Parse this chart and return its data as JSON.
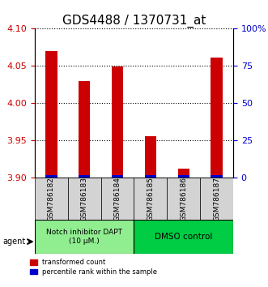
{
  "title": "GDS4488 / 1370731_at",
  "categories": [
    "GSM786182",
    "GSM786183",
    "GSM786184",
    "GSM786185",
    "GSM786186",
    "GSM786187"
  ],
  "red_values": [
    4.07,
    4.03,
    4.049,
    3.956,
    3.913,
    4.061
  ],
  "blue_percentiles": [
    2.0,
    2.0,
    2.0,
    2.0,
    2.0,
    2.0
  ],
  "ylim_left": [
    3.9,
    4.1
  ],
  "ylim_right": [
    0,
    100
  ],
  "yticks_left": [
    3.9,
    3.95,
    4.0,
    4.05,
    4.1
  ],
  "yticks_right": [
    0,
    25,
    50,
    75,
    100
  ],
  "ytick_labels_right": [
    "0",
    "25",
    "50",
    "75",
    "100%"
  ],
  "red_color": "#cc0000",
  "blue_color": "#0000cc",
  "bar_width": 0.35,
  "group1_label": "Notch inhibitor DAPT\n(10 μM.)",
  "group2_label": "DMSO control",
  "group1_color": "#90ee90",
  "group2_color": "#00cc44",
  "legend_red": "transformed count",
  "legend_blue": "percentile rank within the sample",
  "agent_label": "agent",
  "title_fontsize": 11,
  "tick_fontsize": 8
}
